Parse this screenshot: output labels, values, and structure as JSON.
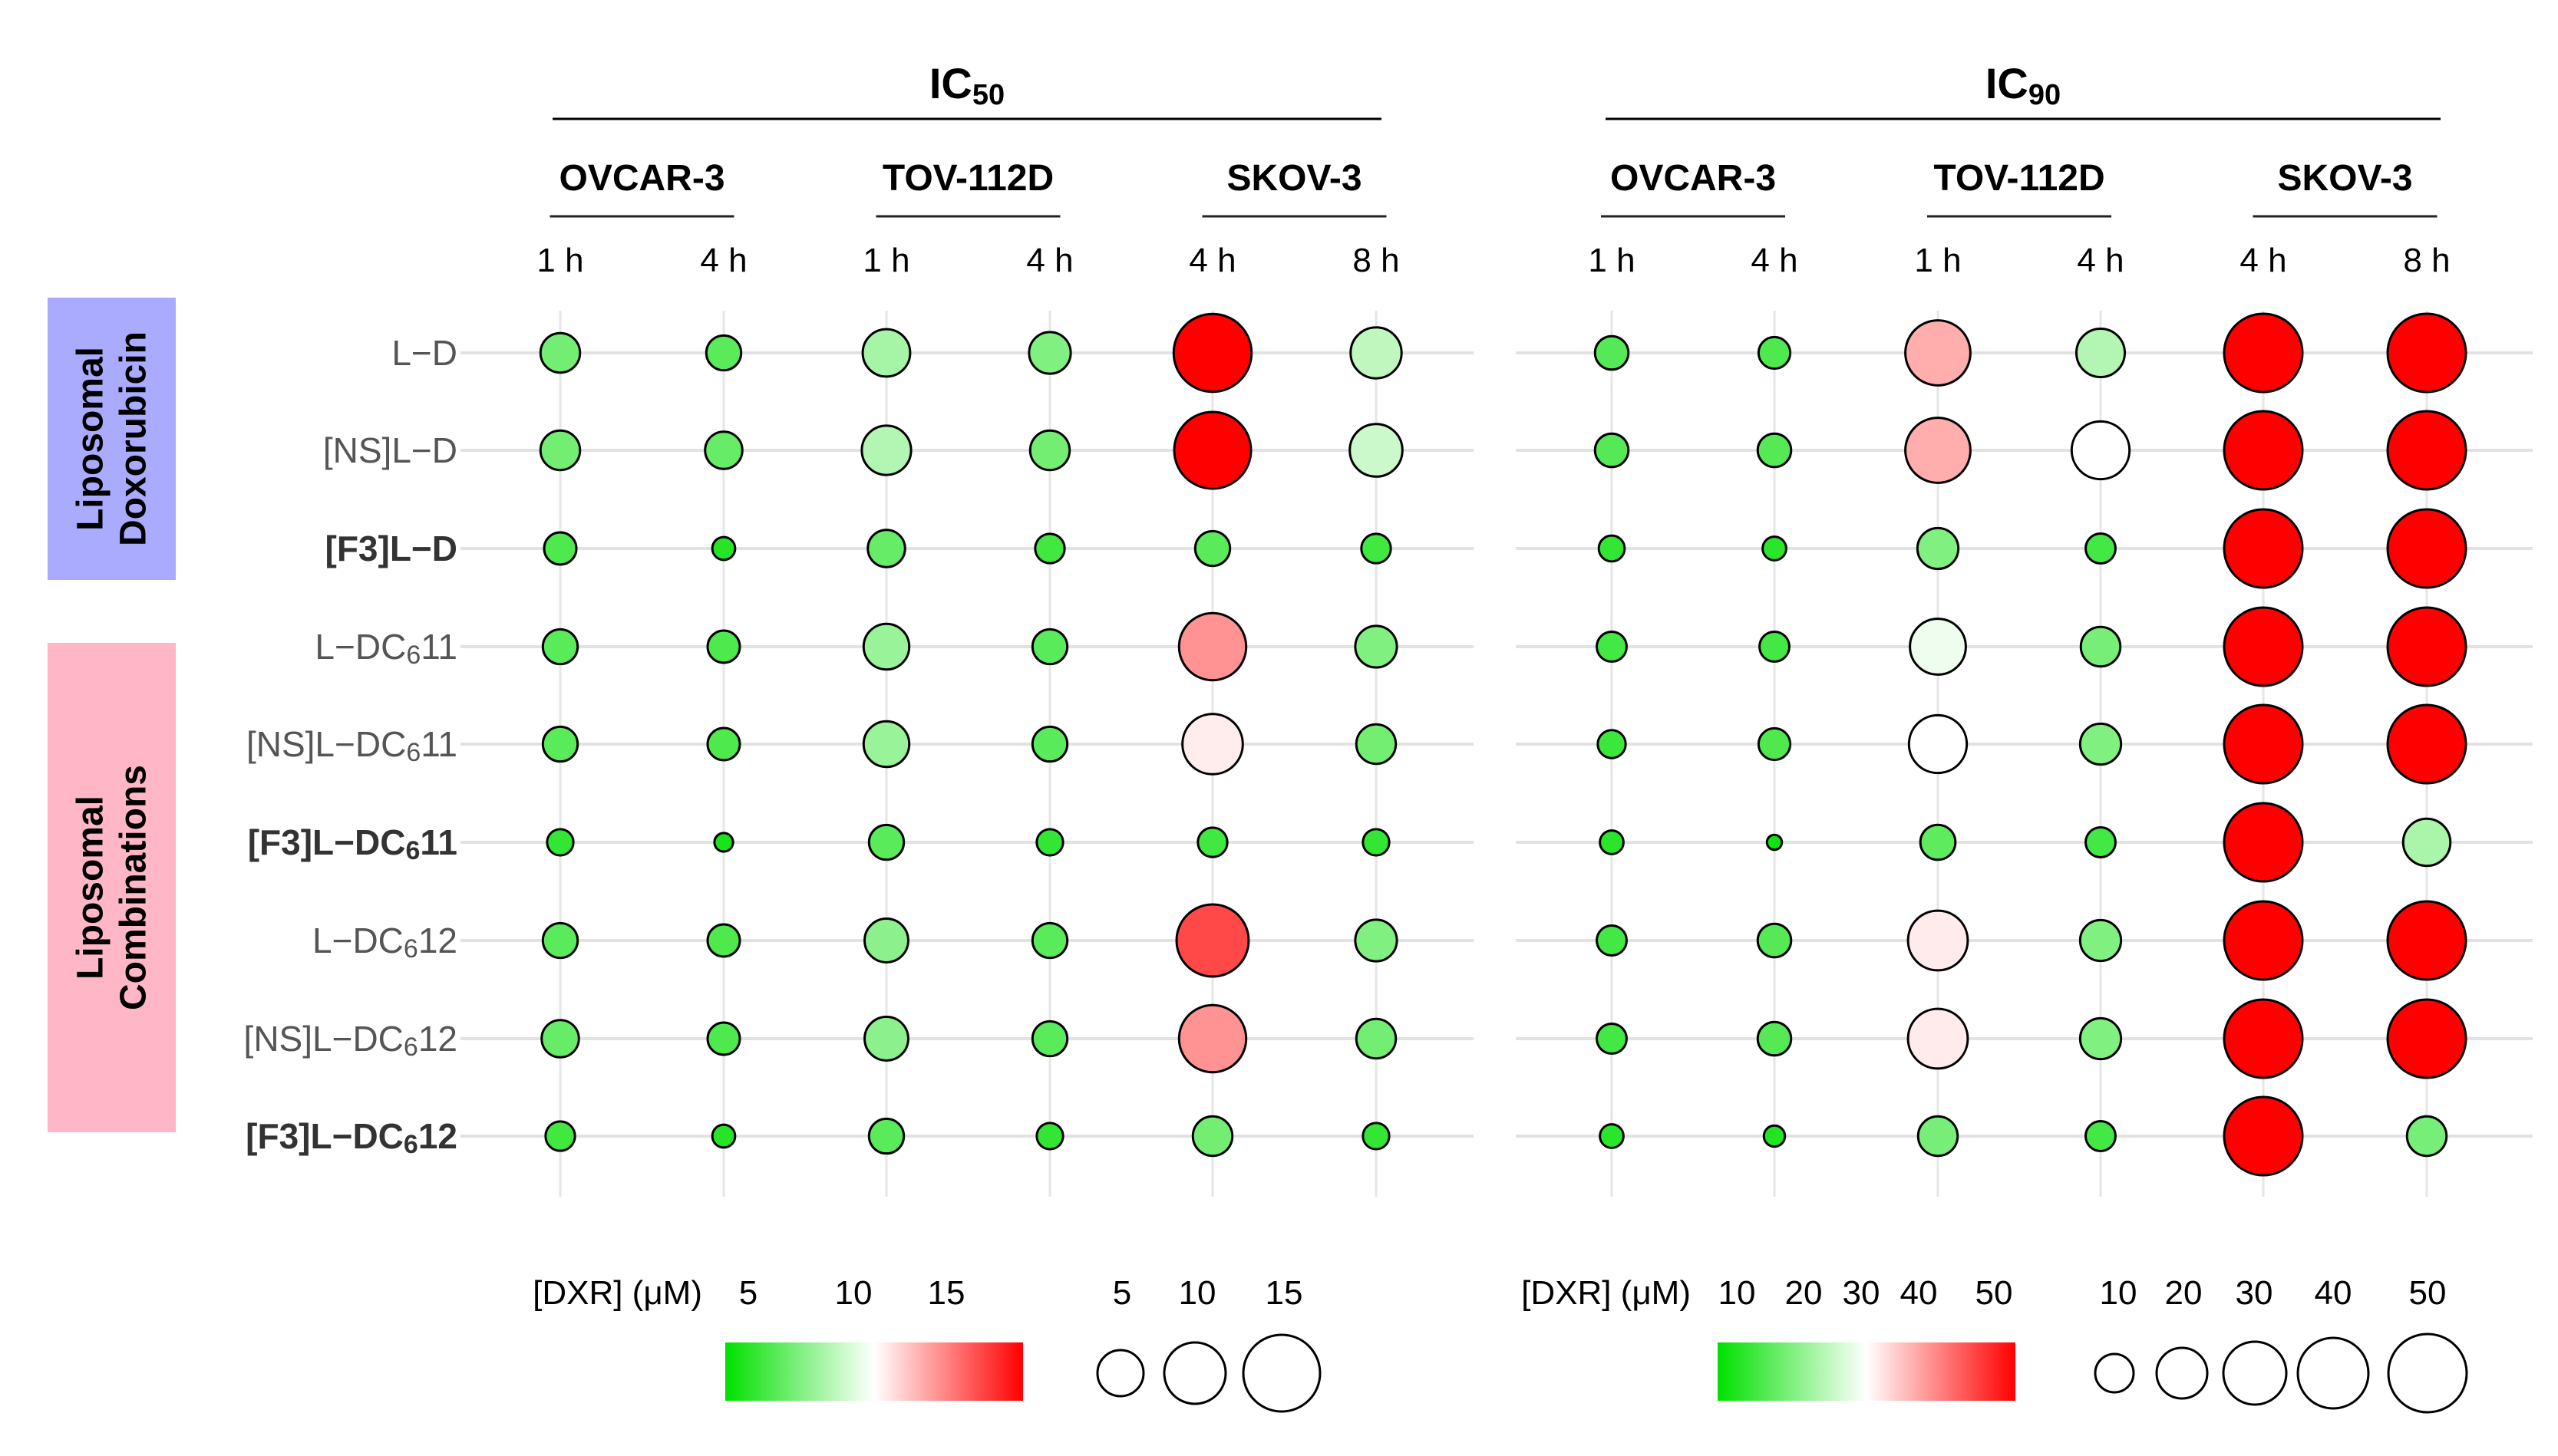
{
  "chart_data": {
    "type": "bubble-heatmap",
    "panels": [
      {
        "title_main": "IC",
        "title_sub": "50",
        "cell_lines": [
          {
            "name": "OVCAR-3",
            "times": [
              "1 h",
              "4 h"
            ]
          },
          {
            "name": "TOV-112D",
            "times": [
              "1 h",
              "4 h"
            ]
          },
          {
            "name": "SKOV-3",
            "times": [
              "4 h",
              "8 h"
            ]
          }
        ],
        "values": [
          [
            4.5,
            3.5,
            6.5,
            5.0,
            17.5,
            7.5
          ],
          [
            4.5,
            4.0,
            7.0,
            4.5,
            17.0,
            8.0
          ],
          [
            3.0,
            1.5,
            4.0,
            2.5,
            3.5,
            2.5
          ],
          [
            3.5,
            3.0,
            6.0,
            3.5,
            13.0,
            5.0
          ],
          [
            3.5,
            3.0,
            6.0,
            3.5,
            10.5,
            4.5
          ],
          [
            2.0,
            1.0,
            3.5,
            2.0,
            2.5,
            2.0
          ],
          [
            3.5,
            3.0,
            5.5,
            3.5,
            15.0,
            5.0
          ],
          [
            4.0,
            3.0,
            5.5,
            3.5,
            13.0,
            4.5
          ],
          [
            2.5,
            1.5,
            3.5,
            2.0,
            4.5,
            2.0
          ]
        ],
        "color_scale": {
          "min": 0,
          "mid": 10,
          "max": 17
        },
        "legend_label": "[DXR] (μM)",
        "color_ticks": [
          "5",
          "10",
          "15"
        ],
        "size_ticks": [
          "5",
          "10",
          "15"
        ]
      },
      {
        "title_main": "IC",
        "title_sub": "90",
        "cell_lines": [
          {
            "name": "OVCAR-3",
            "times": [
              "1 h",
              "4 h"
            ]
          },
          {
            "name": "TOV-112D",
            "times": [
              "1 h",
              "4 h"
            ]
          },
          {
            "name": "SKOV-3",
            "times": [
              "4 h",
              "8 h"
            ]
          }
        ],
        "values": [
          [
            10,
            9,
            38,
            21,
            55,
            55
          ],
          [
            10,
            10,
            38,
            30,
            55,
            55
          ],
          [
            6,
            5,
            15,
            8,
            55,
            55
          ],
          [
            8,
            8,
            28,
            14,
            55,
            55
          ],
          [
            7,
            9,
            30,
            15,
            55,
            55
          ],
          [
            5,
            2,
            11,
            8,
            55,
            20
          ],
          [
            8,
            10,
            32,
            15,
            55,
            55
          ],
          [
            8,
            10,
            32,
            15,
            55,
            55
          ],
          [
            5,
            4,
            14,
            8,
            55,
            14
          ]
        ],
        "color_scale": {
          "min": 0,
          "mid": 30,
          "max": 55
        },
        "legend_label": "[DXR] (μM)",
        "color_ticks": [
          "10",
          "20",
          "30",
          "40",
          "50"
        ],
        "size_ticks": [
          "10",
          "20",
          "30",
          "40",
          "50"
        ]
      }
    ],
    "rows": [
      {
        "label": "L−D",
        "bold": false
      },
      {
        "label": "[NS]L−D",
        "bold": false
      },
      {
        "label": "[F3]L−D",
        "bold": true
      },
      {
        "label": "L−DC",
        "sub": "6",
        "suffix": "11",
        "bold": false
      },
      {
        "label": "[NS]L−DC",
        "sub": "6",
        "suffix": "11",
        "bold": false
      },
      {
        "label": "[F3]L−DC",
        "sub": "6",
        "suffix": "11",
        "bold": true
      },
      {
        "label": "L−DC",
        "sub": "6",
        "suffix": "12",
        "bold": false
      },
      {
        "label": "[NS]L−DC",
        "sub": "6",
        "suffix": "12",
        "bold": false
      },
      {
        "label": "[F3]L−DC",
        "sub": "6",
        "suffix": "12",
        "bold": true
      }
    ],
    "groups": [
      {
        "label_line1": "Liposomal",
        "label_line2": "Doxorubicin",
        "color": "#aaaaff",
        "rows": [
          0,
          2
        ]
      },
      {
        "label_line1": "Liposomal",
        "label_line2": "Combinations",
        "color": "#ffb6c6",
        "rows": [
          3,
          8
        ]
      }
    ],
    "colors": {
      "low": "#00e000",
      "mid": "#ffffff",
      "high": "#ff0000"
    }
  }
}
